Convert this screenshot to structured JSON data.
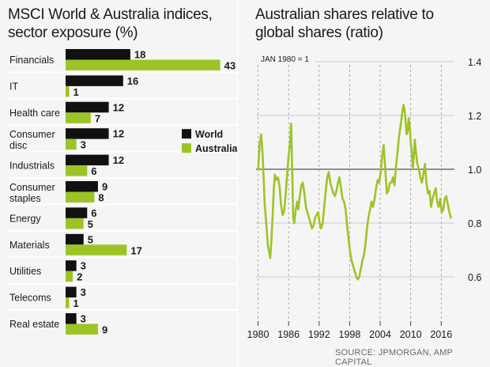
{
  "colors": {
    "world": "#111111",
    "australia": "#9dc427",
    "line": "#9dc427",
    "grid": "#bdbdbd",
    "refline": "#555555",
    "text": "#1a1a1a",
    "muted": "#6a6a6a"
  },
  "left": {
    "title_line1": "MSCI World & Australia indices,",
    "title_line2": "sector exposure (%)"
  },
  "right": {
    "title_line1": "Australian shares relative to",
    "title_line2": "global shares (ratio)",
    "base_note": "JAN 1980 = 1"
  },
  "source": "SOURCE: JPMORGAN, AMP CAPITAL",
  "chart_data": [
    {
      "type": "bar",
      "orientation": "horizontal",
      "title": "MSCI World & Australia indices, sector exposure (%)",
      "categories": [
        [
          "Financials"
        ],
        [
          "IT"
        ],
        [
          "Health care"
        ],
        [
          "Consumer",
          "disc"
        ],
        [
          "Industrials"
        ],
        [
          "Consumer",
          "staples"
        ],
        [
          "Energy"
        ],
        [
          "Materials"
        ],
        [
          "Utilities"
        ],
        [
          "Telecoms"
        ],
        [
          "Real estate"
        ]
      ],
      "series": [
        {
          "name": "World",
          "values": [
            18,
            16,
            12,
            12,
            12,
            9,
            6,
            5,
            3,
            3,
            3
          ]
        },
        {
          "name": "Australia",
          "values": [
            43,
            1,
            7,
            3,
            6,
            8,
            5,
            17,
            2,
            1,
            9
          ]
        }
      ],
      "legend": "right of Consumer disc"
    },
    {
      "type": "line",
      "title": "Australian shares relative to global shares (ratio)",
      "base_note": "JAN 1980 = 1",
      "ylim": [
        0.5,
        1.45
      ],
      "yticks": [
        0.6,
        0.8,
        1.0,
        1.2,
        1.4
      ],
      "ytick_labels": [
        "0.6",
        "0.8",
        "1.0",
        "1.2",
        "1.4"
      ],
      "reference_line": 1.0,
      "xlim": [
        1979.6,
        2018.6
      ],
      "xticks": [
        1980,
        1986,
        1992,
        1998,
        2004,
        2010,
        2016
      ],
      "xtick_labels": [
        "1980",
        "1986",
        "1992",
        "1998",
        "2004",
        "2010",
        "2016"
      ],
      "series": [
        {
          "name": "Australian shares relative to global shares",
          "x": [
            1980.0,
            1980.3,
            1980.6,
            1980.9,
            1981.1,
            1981.3,
            1981.6,
            1981.9,
            1982.2,
            1982.4,
            1982.6,
            1982.9,
            1983.1,
            1983.3,
            1983.6,
            1983.9,
            1984.2,
            1984.5,
            1984.8,
            1985.1,
            1985.4,
            1985.7,
            1986.0,
            1986.3,
            1986.5,
            1986.7,
            1986.9,
            1987.1,
            1987.4,
            1987.7,
            1987.9,
            1988.2,
            1988.5,
            1988.8,
            1989.1,
            1989.4,
            1989.7,
            1990.0,
            1990.3,
            1990.6,
            1990.9,
            1991.2,
            1991.5,
            1991.8,
            1992.1,
            1992.4,
            1992.7,
            1993.0,
            1993.3,
            1993.6,
            1993.9,
            1994.2,
            1994.5,
            1994.8,
            1995.1,
            1995.4,
            1995.7,
            1996.0,
            1996.3,
            1996.6,
            1996.9,
            1997.2,
            1997.5,
            1997.8,
            1998.1,
            1998.4,
            1998.7,
            1999.0,
            1999.3,
            1999.6,
            1999.9,
            2000.2,
            2000.5,
            2000.8,
            2001.1,
            2001.4,
            2001.7,
            2002.0,
            2002.3,
            2002.6,
            2002.9,
            2003.2,
            2003.5,
            2003.8,
            2004.1,
            2004.4,
            2004.7,
            2005.0,
            2005.3,
            2005.6,
            2005.9,
            2006.2,
            2006.5,
            2006.8,
            2007.1,
            2007.4,
            2007.7,
            2008.0,
            2008.2,
            2008.4,
            2008.6,
            2008.8,
            2009.0,
            2009.2,
            2009.4,
            2009.6,
            2009.8,
            2010.0,
            2010.2,
            2010.4,
            2010.6,
            2010.8,
            2011.0,
            2011.3,
            2011.6,
            2011.9,
            2012.2,
            2012.5,
            2012.8,
            2013.1,
            2013.4,
            2013.7,
            2014.0,
            2014.3,
            2014.6,
            2014.9,
            2015.2,
            2015.5,
            2015.8,
            2016.1,
            2016.4,
            2016.7,
            2017.0,
            2017.3,
            2017.6,
            2017.9
          ],
          "y": [
            1.0,
            1.09,
            1.13,
            1.05,
            0.96,
            0.87,
            0.8,
            0.72,
            0.69,
            0.67,
            0.73,
            0.84,
            0.93,
            0.98,
            0.96,
            0.97,
            0.94,
            0.87,
            0.83,
            0.84,
            0.9,
            0.98,
            1.05,
            1.1,
            1.17,
            1.0,
            0.82,
            0.8,
            0.85,
            0.88,
            0.85,
            0.9,
            0.94,
            0.95,
            0.91,
            0.86,
            0.84,
            0.82,
            0.8,
            0.78,
            0.79,
            0.82,
            0.83,
            0.84,
            0.8,
            0.78,
            0.8,
            0.86,
            0.92,
            0.97,
            0.99,
            0.95,
            0.93,
            0.91,
            0.9,
            0.92,
            0.95,
            0.97,
            0.93,
            0.89,
            0.88,
            0.85,
            0.79,
            0.74,
            0.69,
            0.66,
            0.64,
            0.62,
            0.6,
            0.59,
            0.6,
            0.63,
            0.66,
            0.68,
            0.72,
            0.78,
            0.82,
            0.85,
            0.88,
            0.86,
            0.89,
            0.93,
            0.96,
            0.95,
            0.99,
            1.05,
            1.09,
            1.0,
            0.91,
            0.92,
            0.95,
            0.95,
            0.97,
            0.94,
            1.01,
            1.06,
            1.12,
            1.16,
            1.19,
            1.22,
            1.24,
            1.22,
            1.18,
            1.13,
            1.14,
            1.19,
            1.16,
            1.1,
            1.07,
            1.0,
            1.04,
            1.11,
            1.07,
            1.02,
            1.0,
            0.97,
            0.95,
            0.98,
            1.02,
            0.95,
            0.91,
            0.92,
            0.86,
            0.89,
            0.91,
            0.93,
            0.88,
            0.86,
            0.89,
            0.84,
            0.85,
            0.89,
            0.9,
            0.87,
            0.84,
            0.82
          ]
        }
      ]
    }
  ]
}
